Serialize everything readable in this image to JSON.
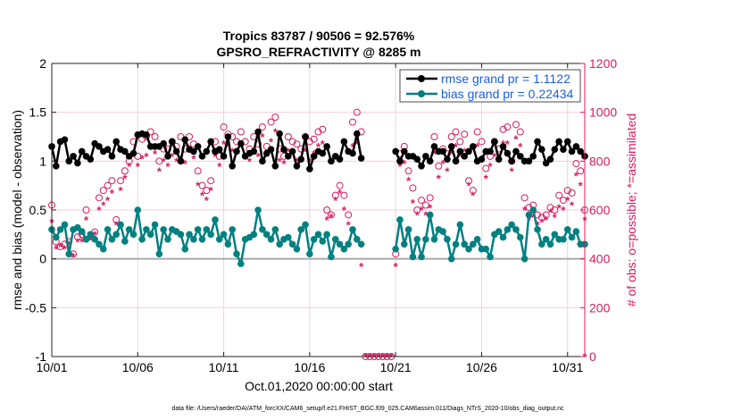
{
  "chart_data": {
    "type": "line",
    "title": "Tropics 83787 / 90506 = 92.576%",
    "subtitle": "GPSRO_REFRACTIVITY @ 8285 m",
    "xlabel": "Oct.01,2020 00:00:00 start",
    "ylabel": "rmse and bias (model - observation)",
    "ylabel_right": "# of obs: o=possible; *=assimilated",
    "footer": "data file: /Users/raeder/DAI/ATM_forcXX/CAM6_setup/f.e21.FHIST_BGC.f09_025.CAM6assim.011/Diags_NTrS_2020-10/obs_diag_output.nc",
    "x_start_day": 0,
    "x_step_days": 0.25,
    "xlim": [
      0,
      31
    ],
    "ylim": [
      -1,
      2
    ],
    "ylim_right": [
      0,
      1200
    ],
    "x_ticks": [
      {
        "v": 0,
        "label": "10/01"
      },
      {
        "v": 5,
        "label": "10/06"
      },
      {
        "v": 10,
        "label": "10/11"
      },
      {
        "v": 15,
        "label": "10/16"
      },
      {
        "v": 20,
        "label": "10/21"
      },
      {
        "v": 25,
        "label": "10/26"
      },
      {
        "v": 30,
        "label": "10/31"
      }
    ],
    "y_ticks": [
      {
        "v": 2,
        "label": "2"
      },
      {
        "v": 1.5,
        "label": "1.5"
      },
      {
        "v": 1,
        "label": "1"
      },
      {
        "v": 0.5,
        "label": "0.5"
      },
      {
        "v": 0,
        "label": "0"
      },
      {
        "v": -0.5,
        "label": "-0.5"
      },
      {
        "v": -1,
        "label": "-1"
      }
    ],
    "y_ticks_right": [
      {
        "v": 1200,
        "label": "1200"
      },
      {
        "v": 1000,
        "label": "1000"
      },
      {
        "v": 800,
        "label": "800"
      },
      {
        "v": 600,
        "label": "600"
      },
      {
        "v": 400,
        "label": "400"
      },
      {
        "v": 200,
        "label": "200"
      },
      {
        "v": 0,
        "label": "0"
      }
    ],
    "grid": true,
    "legend_position": "top-right",
    "colors": {
      "rmse": "#000000",
      "bias": "#008080",
      "obs": "#d81b60",
      "legend_text": "#1a5fe0",
      "zero": "#aaaaaa"
    },
    "series": [
      {
        "name": "rmse grand pr = 1.1122",
        "axis": "left",
        "values": [
          1.15,
          0.95,
          1.2,
          1.22,
          1.0,
          1.05,
          0.98,
          1.1,
          1.05,
          1.02,
          1.18,
          1.15,
          1.1,
          1.12,
          1.05,
          1.2,
          1.12,
          1.1,
          1.05,
          1.08,
          1.27,
          1.28,
          1.27,
          1.15,
          1.15,
          1.15,
          1.18,
          1.05,
          1.2,
          1.1,
          1.0,
          1.22,
          1.12,
          1.1,
          1.15,
          1.05,
          1.1,
          1.2,
          1.1,
          1.12,
          1.05,
          1.25,
          0.95,
          1.1,
          1.18,
          1.05,
          1.08,
          1.1,
          1.3,
          1.0,
          1.08,
          1.12,
          0.95,
          1.28,
          1.12,
          1.05,
          1.1,
          0.95,
          1.02,
          1.25,
          0.92,
          1.05,
          1.1,
          1.08,
          1.15,
          1.0,
          1.05,
          1.02,
          1.2,
          1.1,
          1.08,
          1.28,
          1.03,
          null,
          null,
          null,
          null,
          null,
          null,
          null,
          1.1,
          1.0,
          1.1,
          1.05,
          1.05,
          1.02,
          0.95,
          1.05,
          1.0,
          1.15,
          1.1,
          1.1,
          1.02,
          1.15,
          1.0,
          1.1,
          1.05,
          1.1,
          1.15,
          1.0,
          1.02,
          1.1,
          1.1,
          1.2,
          1.02,
          1.15,
          1.08,
          1.0,
          1.1,
          1.05,
          1.0,
          1.0,
          1.05,
          1.2,
          1.12,
          0.98,
          1.02,
          1.12,
          1.2,
          1.12,
          1.2,
          1.1,
          1.15,
          1.1,
          1.05
        ]
      },
      {
        "name": "bias grand pr = 0.22434",
        "axis": "left",
        "values": [
          0.3,
          0.22,
          0.3,
          0.35,
          0.05,
          0.3,
          0.32,
          0.28,
          0.2,
          0.25,
          0.2,
          0.15,
          0.1,
          0.3,
          0.2,
          0.25,
          0.35,
          0.18,
          0.3,
          0.25,
          0.5,
          0.2,
          0.3,
          0.25,
          0.35,
          0.05,
          0.3,
          0.2,
          0.3,
          0.28,
          0.25,
          0.1,
          0.25,
          0.2,
          0.3,
          0.2,
          0.3,
          0.25,
          0.4,
          0.2,
          0.25,
          0.15,
          0.3,
          0.05,
          -0.05,
          0.2,
          0.22,
          0.25,
          0.5,
          0.3,
          0.25,
          0.2,
          0.3,
          0.15,
          0.2,
          0.22,
          0.15,
          0.1,
          0.3,
          0.35,
          0.05,
          0.2,
          0.25,
          0.18,
          0.25,
          0.02,
          0.2,
          0.15,
          0.1,
          0.15,
          0.3,
          0.2,
          0.15,
          null,
          null,
          null,
          null,
          null,
          null,
          null,
          0.1,
          0.4,
          0.15,
          0.3,
          0.02,
          0.2,
          0.02,
          0.2,
          0.45,
          0.2,
          0.3,
          0.28,
          0.2,
          0.0,
          0.15,
          0.35,
          0.15,
          0.1,
          0.15,
          0.2,
          0.1,
          0.1,
          0.02,
          0.25,
          0.28,
          0.22,
          0.3,
          0.35,
          0.3,
          0.22,
          0.0,
          0.45,
          0.5,
          0.3,
          0.15,
          0.2,
          0.15,
          0.25,
          0.2,
          0.2,
          0.3,
          0.22,
          0.28,
          0.15,
          0.15
        ]
      },
      {
        "name": "possible",
        "axis": "right",
        "marker": "o",
        "values": [
          620,
          470,
          450,
          460,
          470,
          420,
          490,
          500,
          600,
          490,
          510,
          650,
          680,
          700,
          720,
          560,
          720,
          760,
          800,
          880,
          820,
          890,
          900,
          920,
          900,
          800,
          850,
          850,
          880,
          860,
          900,
          850,
          900,
          870,
          760,
          700,
          680,
          720,
          880,
          820,
          940,
          910,
          900,
          880,
          920,
          880,
          850,
          900,
          870,
          940,
          860,
          960,
          980,
          850,
          820,
          900,
          880,
          870,
          850,
          900,
          880,
          890,
          920,
          930,
          600,
          580,
          660,
          700,
          660,
          580,
          960,
          1000,
          920,
          0,
          0,
          0,
          0,
          0,
          0,
          0,
          420,
          830,
          860,
          760,
          690,
          600,
          640,
          620,
          650,
          900,
          780,
          850,
          830,
          900,
          920,
          880,
          910,
          720,
          680,
          920,
          880,
          770,
          820,
          880,
          850,
          930,
          940,
          800,
          950,
          920,
          650,
          610,
          620,
          580,
          570,
          580,
          610,
          600,
          660,
          640,
          680,
          670,
          790,
          760,
          600
        ]
      },
      {
        "name": "assimilated",
        "axis": "right",
        "marker": "*",
        "values": [
          550,
          440,
          450,
          440,
          460,
          410,
          470,
          470,
          560,
          480,
          500,
          600,
          620,
          640,
          670,
          540,
          680,
          730,
          780,
          820,
          780,
          810,
          820,
          850,
          830,
          760,
          800,
          780,
          820,
          800,
          810,
          790,
          850,
          810,
          700,
          660,
          640,
          680,
          820,
          780,
          870,
          860,
          840,
          830,
          860,
          820,
          800,
          840,
          820,
          900,
          820,
          880,
          920,
          800,
          790,
          840,
          830,
          800,
          800,
          840,
          800,
          830,
          860,
          870,
          560,
          570,
          640,
          670,
          600,
          540,
          860,
          870,
          370,
          0,
          0,
          0,
          0,
          0,
          0,
          0,
          370,
          780,
          790,
          720,
          630,
          580,
          600,
          580,
          610,
          830,
          730,
          790,
          760,
          830,
          860,
          820,
          840,
          700,
          660,
          860,
          810,
          730,
          780,
          820,
          800,
          870,
          870,
          760,
          890,
          860,
          600,
          560,
          570,
          540,
          550,
          560,
          590,
          570,
          610,
          600,
          640,
          620,
          740,
          700,
          560,
          0
        ]
      }
    ]
  }
}
